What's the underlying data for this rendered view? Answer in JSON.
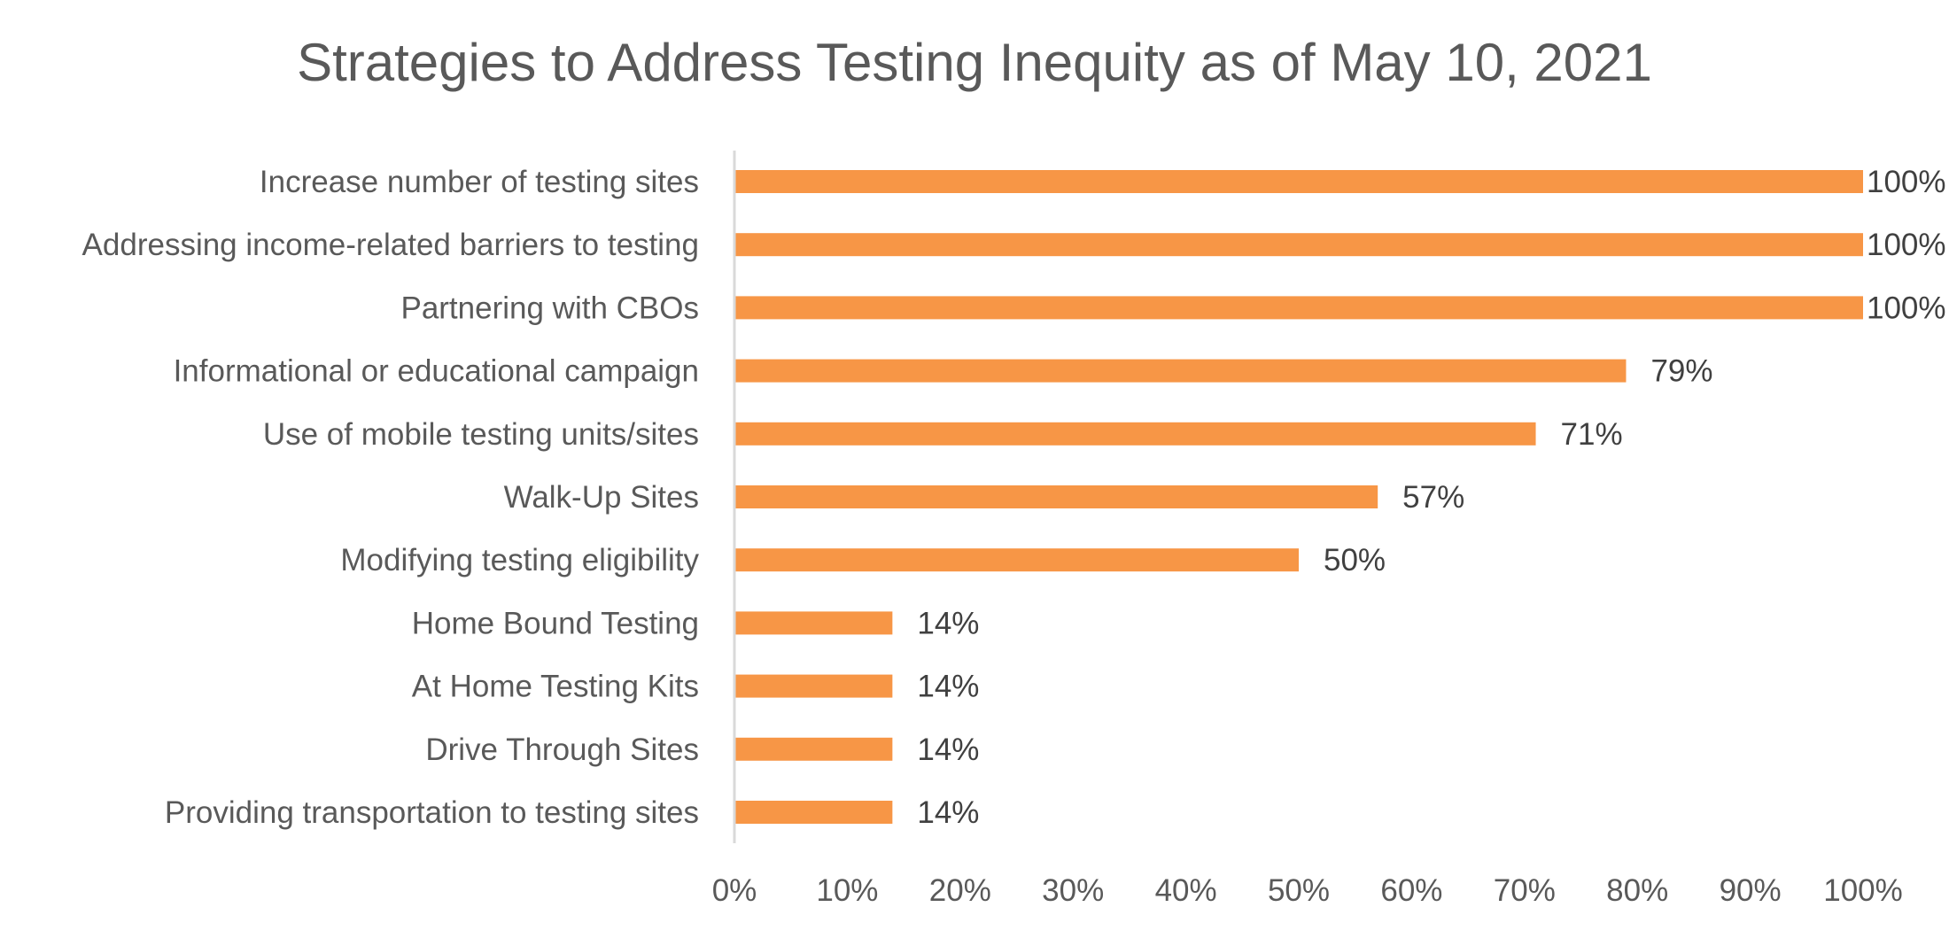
{
  "chart_data": {
    "type": "bar",
    "orientation": "horizontal",
    "title": "Strategies to Address Testing Inequity as of May 10, 2021",
    "categories": [
      "Increase number of testing sites",
      "Addressing income-related barriers to testing",
      "Partnering with CBOs",
      "Informational or educational campaign",
      "Use of mobile testing units/sites",
      "Walk-Up Sites",
      "Modifying testing eligibility",
      "Home Bound Testing",
      "At Home Testing Kits",
      "Drive Through Sites",
      "Providing transportation to testing sites"
    ],
    "values": [
      100,
      100,
      100,
      79,
      71,
      57,
      50,
      14,
      14,
      14,
      14
    ],
    "data_labels": [
      "100%",
      "100%",
      "100%",
      "79%",
      "71%",
      "57%",
      "50%",
      "14%",
      "14%",
      "14%",
      "14%"
    ],
    "xlim": [
      0,
      100
    ],
    "x_ticks": [
      0,
      10,
      20,
      30,
      40,
      50,
      60,
      70,
      80,
      90,
      100
    ],
    "x_tick_labels": [
      "0%",
      "10%",
      "20%",
      "30%",
      "40%",
      "50%",
      "60%",
      "70%",
      "80%",
      "90%",
      "100%"
    ],
    "xlabel": "",
    "ylabel": "",
    "grid": false,
    "legend": "none",
    "bar_color": "#F79646",
    "axis_color": "#D9D9D9"
  }
}
